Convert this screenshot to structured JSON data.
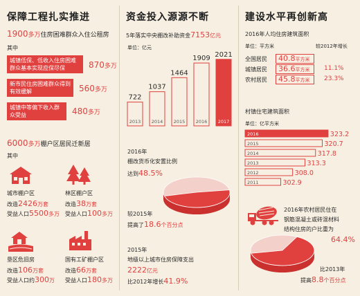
{
  "colors": {
    "accent": "#e0403e",
    "bg": "#f6efe2",
    "pale": "#f3d0c9"
  },
  "left": {
    "title": "保障工程扎实推进",
    "intro": {
      "num": "1900",
      "unit": "多万",
      "text": "住房困难群众入住公租房"
    },
    "qizhong": "其中",
    "items": [
      {
        "text": "城镇低保、低收入住房困难群众基本实现应保尽保",
        "num": "870",
        "unit": "多万"
      },
      {
        "text": "新市民住房困难群众得到有效缓解",
        "num": "560",
        "unit": "多万"
      },
      {
        "text": "城镇中等偏下收入群众受益",
        "num": "480",
        "unit": "多万"
      }
    ],
    "intro2": {
      "num": "6000",
      "unit": "多万",
      "text": "棚户区居民迁新居"
    },
    "qizhong2": "其中",
    "cats": [
      {
        "icon": "house-icon",
        "name": "城市棚户区",
        "l1": "改造",
        "n1": "2426",
        "u1": "万套",
        "l2": "受益人口",
        "n2": "5500",
        "u2": "多万"
      },
      {
        "icon": "forest-icon",
        "name": "林区棚户区",
        "l1": "改造",
        "n1": "38",
        "u1": "万套",
        "l2": "受益人口",
        "n2": "100",
        "u2": "多万"
      },
      {
        "icon": "farm-icon",
        "name": "垦区危旧房",
        "l1": "改造",
        "n1": "106",
        "u1": "万套",
        "l2": "受益人口约",
        "n2": "300",
        "u2": "万"
      },
      {
        "icon": "factory-icon",
        "name": "国有工矿棚户区",
        "l1": "改造",
        "n1": "66",
        "u1": "万套",
        "l2": "受益人口",
        "n2": "180",
        "u2": "多万"
      }
    ]
  },
  "mid": {
    "title": "资金投入源源不断",
    "chart_title": {
      "text": "5年落实中央棚改补助资金",
      "num": "7153",
      "unit": "亿元"
    },
    "unit_label": "单位：亿元",
    "pie1": {
      "line1": "2016年",
      "line2": "棚改货币化安置比例",
      "pre": "达到",
      "val": "48.5%",
      "foot_pre": "较2015年",
      "foot_mid": "提高了",
      "foot_val": "18.6",
      "foot_unit": "个百分点"
    },
    "tail": {
      "l1": "2015年",
      "l2": "地级以上城市住房保障支出",
      "l3_num": "2222",
      "l3_unit": "亿元",
      "l4_pre": "比2012年增长",
      "l4_val": "41.9%"
    }
  },
  "right": {
    "title": "建设水平再创新高",
    "table_title": "2016年人均住房建筑面积",
    "unit_label": "单位：平方米",
    "compare_header": "较2012年增长",
    "rows": [
      {
        "name": "全国居民",
        "area": "40.8",
        "unit": "平方米",
        "growth": ""
      },
      {
        "name": "城镇居民",
        "area": "36.6",
        "unit": "平方米",
        "growth": "11.1%"
      },
      {
        "name": "农村居民",
        "area": "45.8",
        "unit": "平方米",
        "growth": "23.3%"
      }
    ],
    "bar_title": "村镇住宅建筑面积",
    "bar_unit": "单位：亿平方米",
    "pie2": {
      "l1": "2016年农村居民住在",
      "l2": "钢筋混凝土或砖混材料",
      "l3": "结构住房的户比重为",
      "val": "64.4%",
      "foot_pre": "比2013年",
      "foot_mid": "提高",
      "foot_val": "8.8",
      "foot_unit": "个百分点"
    }
  },
  "chart_data": [
    {
      "type": "bar",
      "title": "5年落实中央棚改补助资金7153亿元",
      "ylabel": "单位：亿元",
      "categories": [
        "2013",
        "2014",
        "2015",
        "2016",
        "2017"
      ],
      "values": [
        722,
        1037,
        1464,
        1909,
        2021
      ],
      "ylim": [
        0,
        2100
      ]
    },
    {
      "type": "bar",
      "orientation": "horizontal",
      "title": "村镇住宅建筑面积",
      "xlabel": "单位：亿平方米",
      "categories": [
        "2016",
        "2015",
        "2014",
        "2013",
        "2012",
        "2011"
      ],
      "values": [
        323.2,
        320.7,
        317.8,
        313.3,
        308.0,
        302.9
      ]
    },
    {
      "type": "pie",
      "title": "2016年棚改货币化安置比例",
      "values": [
        48.5,
        51.5
      ]
    },
    {
      "type": "pie",
      "title": "2016年农村居民住在钢筋混凝土或砖混材料结构住房的户比重",
      "values": [
        64.4,
        35.6
      ]
    }
  ]
}
